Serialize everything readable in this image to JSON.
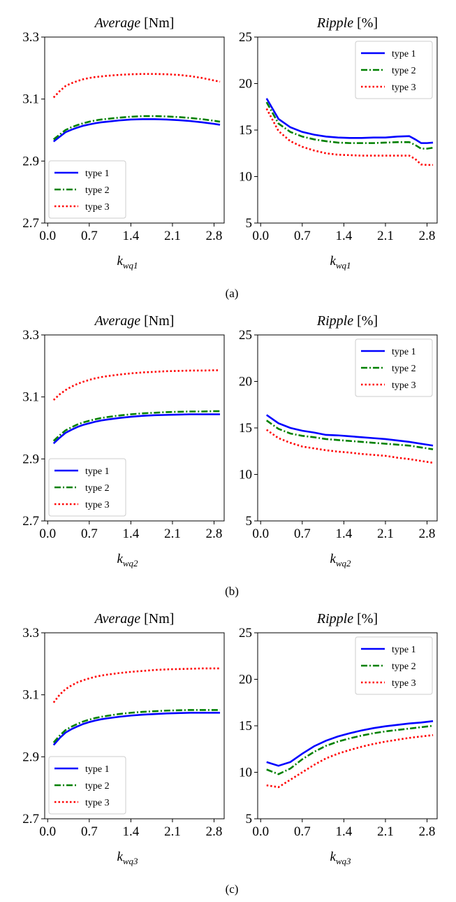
{
  "panels": [
    {
      "caption": "(a)",
      "charts": [
        {
          "type": "line",
          "title": "Average",
          "unit": "[Nm]",
          "xlabel_main": "k",
          "xlabel_sub": "wq1",
          "ylim": [
            2.7,
            3.3
          ],
          "yticks": [
            "2.7",
            "2.9",
            "3.1",
            "3.3"
          ],
          "xticks": [
            "0.0",
            "0.7",
            "1.4",
            "2.1",
            "2.8"
          ],
          "legend": "lower-left",
          "x": [
            0.1,
            0.2,
            0.3,
            0.4,
            0.5,
            0.6,
            0.7,
            0.8,
            0.9,
            1.0,
            1.2,
            1.4,
            1.6,
            1.8,
            2.0,
            2.2,
            2.4,
            2.6,
            2.8,
            2.9
          ],
          "series": [
            {
              "name": "type 1",
              "color": "#0000ff",
              "dash": "solid",
              "values": [
                2.963,
                2.978,
                2.993,
                3.001,
                3.008,
                3.014,
                3.018,
                3.022,
                3.025,
                3.027,
                3.031,
                3.034,
                3.035,
                3.035,
                3.034,
                3.032,
                3.029,
                3.025,
                3.02,
                3.017
              ]
            },
            {
              "name": "type 2",
              "color": "#008000",
              "dash": "dashdot",
              "values": [
                2.97,
                2.985,
                3.0,
                3.009,
                3.016,
                3.022,
                3.027,
                3.031,
                3.034,
                3.036,
                3.04,
                3.043,
                3.045,
                3.045,
                3.044,
                3.042,
                3.039,
                3.035,
                3.03,
                3.027
              ]
            },
            {
              "name": "type 3",
              "color": "#ff0000",
              "dash": "dotted",
              "values": [
                3.105,
                3.125,
                3.142,
                3.151,
                3.158,
                3.164,
                3.168,
                3.171,
                3.173,
                3.175,
                3.178,
                3.18,
                3.181,
                3.181,
                3.18,
                3.178,
                3.174,
                3.168,
                3.16,
                3.156
              ]
            }
          ]
        },
        {
          "type": "line",
          "title": "Ripple",
          "unit": "[%]",
          "xlabel_main": "k",
          "xlabel_sub": "wq1",
          "ylim": [
            5,
            25
          ],
          "yticks": [
            "5",
            "10",
            "15",
            "20",
            "25"
          ],
          "xticks": [
            "0.0",
            "0.7",
            "1.4",
            "2.1",
            "2.8"
          ],
          "legend": "top-right",
          "x": [
            0.1,
            0.3,
            0.5,
            0.7,
            0.9,
            1.1,
            1.3,
            1.5,
            1.7,
            1.9,
            2.1,
            2.3,
            2.5,
            2.6,
            2.7,
            2.8,
            2.9
          ],
          "series": [
            {
              "name": "type 1",
              "color": "#0000ff",
              "dash": "solid",
              "values": [
                18.4,
                16.2,
                15.3,
                14.8,
                14.5,
                14.3,
                14.2,
                14.15,
                14.15,
                14.2,
                14.2,
                14.3,
                14.35,
                14.0,
                13.6,
                13.6,
                13.65
              ]
            },
            {
              "name": "type 2",
              "color": "#008000",
              "dash": "dashdot",
              "values": [
                18.0,
                15.7,
                14.8,
                14.3,
                14.0,
                13.8,
                13.65,
                13.6,
                13.6,
                13.6,
                13.65,
                13.7,
                13.7,
                13.4,
                13.0,
                13.0,
                13.1
              ]
            },
            {
              "name": "type 3",
              "color": "#ff0000",
              "dash": "dotted",
              "values": [
                17.3,
                14.9,
                13.8,
                13.2,
                12.8,
                12.5,
                12.35,
                12.3,
                12.25,
                12.25,
                12.25,
                12.25,
                12.25,
                11.9,
                11.3,
                11.25,
                11.25
              ]
            }
          ]
        }
      ]
    },
    {
      "caption": "(b)",
      "charts": [
        {
          "type": "line",
          "title": "Average",
          "unit": "[Nm]",
          "xlabel_main": "k",
          "xlabel_sub": "wq2",
          "ylim": [
            2.7,
            3.3
          ],
          "yticks": [
            "2.7",
            "2.9",
            "3.1",
            "3.3"
          ],
          "xticks": [
            "0.0",
            "0.7",
            "1.4",
            "2.1",
            "2.8"
          ],
          "legend": "lower-left",
          "x": [
            0.1,
            0.2,
            0.3,
            0.4,
            0.5,
            0.6,
            0.7,
            0.8,
            0.9,
            1.0,
            1.2,
            1.4,
            1.6,
            1.8,
            2.0,
            2.2,
            2.4,
            2.6,
            2.8,
            2.9
          ],
          "series": [
            {
              "name": "type 1",
              "color": "#0000ff",
              "dash": "solid",
              "values": [
                2.95,
                2.968,
                2.984,
                2.994,
                3.003,
                3.01,
                3.015,
                3.02,
                3.024,
                3.027,
                3.032,
                3.036,
                3.039,
                3.041,
                3.042,
                3.043,
                3.044,
                3.044,
                3.044,
                3.044
              ]
            },
            {
              "name": "type 2",
              "color": "#008000",
              "dash": "dashdot",
              "values": [
                2.958,
                2.976,
                2.992,
                3.002,
                3.011,
                3.018,
                3.023,
                3.028,
                3.032,
                3.035,
                3.04,
                3.044,
                3.047,
                3.049,
                3.051,
                3.052,
                3.053,
                3.053,
                3.054,
                3.054
              ]
            },
            {
              "name": "type 3",
              "color": "#ff0000",
              "dash": "dotted",
              "values": [
                3.09,
                3.108,
                3.122,
                3.133,
                3.142,
                3.149,
                3.155,
                3.16,
                3.164,
                3.167,
                3.172,
                3.176,
                3.179,
                3.181,
                3.183,
                3.184,
                3.185,
                3.185,
                3.186,
                3.186
              ]
            }
          ]
        },
        {
          "type": "line",
          "title": "Ripple",
          "unit": "[%]",
          "xlabel_main": "k",
          "xlabel_sub": "wq2",
          "ylim": [
            5,
            25
          ],
          "yticks": [
            "5",
            "10",
            "15",
            "20",
            "25"
          ],
          "xticks": [
            "0.0",
            "0.7",
            "1.4",
            "2.1",
            "2.8"
          ],
          "legend": "top-right",
          "x": [
            0.1,
            0.3,
            0.5,
            0.7,
            0.9,
            1.1,
            1.3,
            1.5,
            1.7,
            1.9,
            2.1,
            2.3,
            2.5,
            2.7,
            2.9
          ],
          "series": [
            {
              "name": "type 1",
              "color": "#0000ff",
              "dash": "solid",
              "values": [
                16.4,
                15.5,
                15.0,
                14.7,
                14.5,
                14.25,
                14.2,
                14.1,
                14.0,
                13.9,
                13.8,
                13.65,
                13.5,
                13.3,
                13.1
              ]
            },
            {
              "name": "type 2",
              "color": "#008000",
              "dash": "dashdot",
              "values": [
                15.8,
                14.9,
                14.4,
                14.15,
                14.0,
                13.8,
                13.7,
                13.6,
                13.5,
                13.4,
                13.3,
                13.2,
                13.1,
                12.9,
                12.7
              ]
            },
            {
              "name": "type 3",
              "color": "#ff0000",
              "dash": "dotted",
              "values": [
                14.8,
                13.9,
                13.4,
                13.0,
                12.8,
                12.6,
                12.45,
                12.35,
                12.2,
                12.1,
                12.0,
                11.8,
                11.65,
                11.45,
                11.25
              ]
            }
          ]
        }
      ]
    },
    {
      "caption": "(c)",
      "charts": [
        {
          "type": "line",
          "title": "Average",
          "unit": "[Nm]",
          "xlabel_main": "k",
          "xlabel_sub": "wq3",
          "ylim": [
            2.7,
            3.3
          ],
          "yticks": [
            "2.7",
            "2.9",
            "3.1",
            "3.3"
          ],
          "xticks": [
            "0.0",
            "0.7",
            "1.4",
            "2.1",
            "2.8"
          ],
          "legend": "lower-left",
          "x": [
            0.1,
            0.2,
            0.3,
            0.4,
            0.5,
            0.6,
            0.7,
            0.8,
            0.9,
            1.0,
            1.2,
            1.4,
            1.6,
            1.8,
            2.0,
            2.2,
            2.4,
            2.6,
            2.8,
            2.9
          ],
          "series": [
            {
              "name": "type 1",
              "color": "#0000ff",
              "dash": "solid",
              "values": [
                2.938,
                2.96,
                2.978,
                2.989,
                2.998,
                3.006,
                3.012,
                3.017,
                3.021,
                3.024,
                3.029,
                3.033,
                3.036,
                3.038,
                3.04,
                3.041,
                3.042,
                3.042,
                3.042,
                3.042
              ]
            },
            {
              "name": "type 2",
              "color": "#008000",
              "dash": "dashdot",
              "values": [
                2.946,
                2.968,
                2.986,
                2.997,
                3.006,
                3.014,
                3.02,
                3.025,
                3.029,
                3.032,
                3.038,
                3.042,
                3.045,
                3.047,
                3.049,
                3.05,
                3.051,
                3.051,
                3.051,
                3.051
              ]
            },
            {
              "name": "type 3",
              "color": "#ff0000",
              "dash": "dotted",
              "values": [
                3.075,
                3.1,
                3.118,
                3.13,
                3.14,
                3.147,
                3.153,
                3.158,
                3.162,
                3.165,
                3.17,
                3.174,
                3.177,
                3.18,
                3.182,
                3.183,
                3.184,
                3.185,
                3.185,
                3.185
              ]
            }
          ]
        },
        {
          "type": "line",
          "title": "Ripple",
          "unit": "[%]",
          "xlabel_main": "k",
          "xlabel_sub": "wq3",
          "ylim": [
            5,
            25
          ],
          "yticks": [
            "5",
            "10",
            "15",
            "20",
            "25"
          ],
          "xticks": [
            "0.0",
            "0.7",
            "1.4",
            "2.1",
            "2.8"
          ],
          "legend": "top-right",
          "x": [
            0.1,
            0.3,
            0.5,
            0.7,
            0.9,
            1.1,
            1.3,
            1.5,
            1.7,
            1.9,
            2.1,
            2.3,
            2.5,
            2.7,
            2.9
          ],
          "series": [
            {
              "name": "type 1",
              "color": "#0000ff",
              "dash": "solid",
              "values": [
                11.1,
                10.7,
                11.1,
                12.0,
                12.8,
                13.4,
                13.85,
                14.2,
                14.5,
                14.75,
                14.95,
                15.1,
                15.25,
                15.35,
                15.5
              ]
            },
            {
              "name": "type 2",
              "color": "#008000",
              "dash": "dashdot",
              "values": [
                10.3,
                9.8,
                10.4,
                11.4,
                12.2,
                12.85,
                13.3,
                13.65,
                13.95,
                14.2,
                14.4,
                14.55,
                14.7,
                14.85,
                15.0
              ]
            },
            {
              "name": "type 3",
              "color": "#ff0000",
              "dash": "dotted",
              "values": [
                8.6,
                8.4,
                9.2,
                10.0,
                10.8,
                11.5,
                12.0,
                12.4,
                12.75,
                13.05,
                13.3,
                13.5,
                13.7,
                13.85,
                14.0
              ]
            }
          ]
        }
      ]
    }
  ]
}
